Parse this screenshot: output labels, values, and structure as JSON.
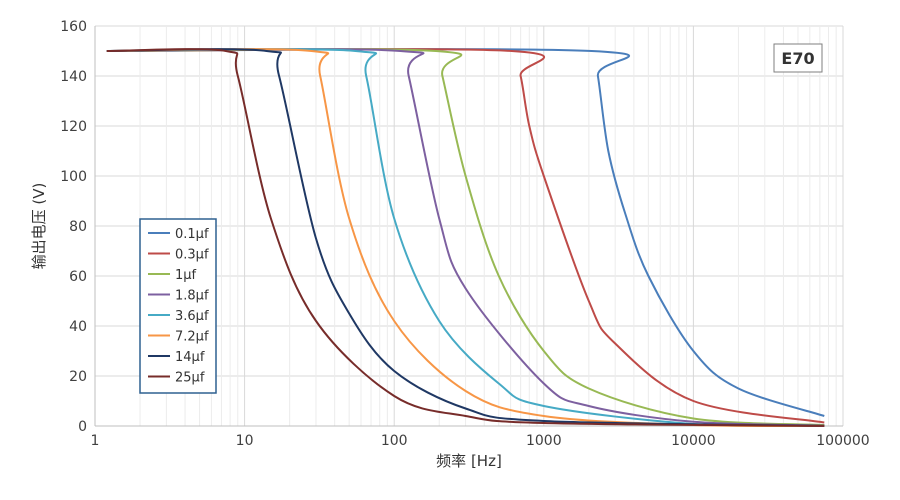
{
  "chart_data": {
    "type": "line",
    "title": "",
    "xlabel": "频率 [Hz]",
    "ylabel": "输出电压 (V)",
    "x_scale": "log",
    "xlim": [
      1,
      100000
    ],
    "ylim": [
      0,
      160
    ],
    "x_ticks": [
      "1",
      "10",
      "100",
      "1000",
      "10000",
      "100000"
    ],
    "y_ticks": [
      "0",
      "20",
      "40",
      "60",
      "80",
      "100",
      "120",
      "140",
      "160"
    ],
    "grid": true,
    "legend_position": "lower-left",
    "badge": "E70",
    "series": [
      {
        "name": "0.1µf",
        "color": "#4a7ebb",
        "plateau": 150,
        "x": [
          1.2,
          2090,
          2300,
          2700,
          3500,
          5000,
          10000,
          20000,
          75000
        ],
        "y": [
          150,
          150,
          140,
          110,
          85,
          60,
          30,
          15,
          4
        ]
      },
      {
        "name": "0.3µf",
        "color": "#be4b48",
        "plateau": 150,
        "x": [
          1.2,
          610,
          700,
          800,
          1000,
          2000,
          3000,
          10000,
          75000
        ],
        "y": [
          150,
          150,
          140,
          120,
          100,
          50,
          33,
          10,
          1.4
        ]
      },
      {
        "name": "1µf",
        "color": "#98b954",
        "plateau": 150,
        "x": [
          1.2,
          190,
          210,
          300,
          500,
          1000,
          2000,
          10000,
          75000
        ],
        "y": [
          150,
          150,
          140,
          100,
          60,
          30,
          15,
          3,
          0.4
        ]
      },
      {
        "name": "1.8µf",
        "color": "#7d60a0",
        "plateau": 150,
        "x": [
          1.2,
          110,
          125,
          200,
          300,
          1000,
          2000,
          10000,
          75000
        ],
        "y": [
          150,
          150,
          140,
          83,
          55,
          17,
          8,
          1.7,
          0.2
        ]
      },
      {
        "name": "3.6µf",
        "color": "#46aac5",
        "plateau": 150,
        "x": [
          1.2,
          55,
          65,
          100,
          200,
          500,
          1000,
          10000,
          75000
        ],
        "y": [
          150,
          150,
          140,
          83,
          42,
          17,
          8,
          0.8,
          0.1
        ]
      },
      {
        "name": "7.2µf",
        "color": "#f79646",
        "plateau": 150,
        "x": [
          1.2,
          28,
          32,
          50,
          100,
          300,
          1000,
          10000,
          75000
        ],
        "y": [
          150,
          150,
          140,
          83,
          42,
          14,
          4,
          0.4,
          0.05
        ]
      },
      {
        "name": "14µf",
        "color": "#1f3864",
        "plateau": 150,
        "x": [
          1.2,
          14,
          17,
          30,
          50,
          100,
          300,
          1000,
          75000
        ],
        "y": [
          150,
          150,
          140,
          75,
          45,
          22,
          7,
          2,
          0.03
        ]
      },
      {
        "name": "25µf",
        "color": "#772c2a",
        "plateau": 150,
        "x": [
          1.2,
          7.5,
          9,
          15,
          30,
          100,
          300,
          1000,
          75000
        ],
        "y": [
          150,
          150,
          140,
          83,
          42,
          12,
          4,
          1.2,
          0.02
        ]
      }
    ]
  }
}
